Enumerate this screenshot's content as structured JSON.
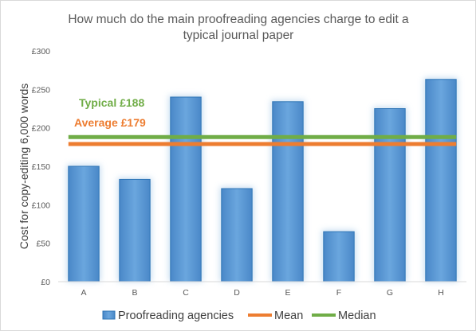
{
  "chart_data": {
    "type": "bar",
    "title": [
      "How much do the main proofreading agencies charge to edit a",
      "typical journal paper"
    ],
    "ylabel": "Cost for copy-editing 6,000 words",
    "xlabel": "",
    "ylim": [
      0,
      300
    ],
    "y_ticks": [
      0,
      50,
      100,
      150,
      200,
      250,
      300
    ],
    "y_tick_labels": [
      "£0",
      "£50",
      "£100",
      "£150",
      "£200",
      "£250",
      "£300"
    ],
    "categories": [
      "A",
      "B",
      "C",
      "D",
      "E",
      "F",
      "G",
      "H"
    ],
    "series": [
      {
        "name": "Proofreading agencies",
        "kind": "bar",
        "values": [
          150,
          133,
          240,
          121,
          234,
          65,
          225,
          263
        ],
        "color": "#5b9bd5"
      },
      {
        "name": "Mean",
        "kind": "line",
        "value": 179,
        "color": "#ed7d31"
      },
      {
        "name": "Median",
        "kind": "line",
        "value": 188,
        "color": "#70ad47"
      }
    ],
    "annotations": [
      {
        "text": "Typical £188",
        "color": "#70ad47"
      },
      {
        "text": "Average £179",
        "color": "#ed7d31"
      }
    ],
    "grid": false,
    "legend_position": "bottom"
  }
}
